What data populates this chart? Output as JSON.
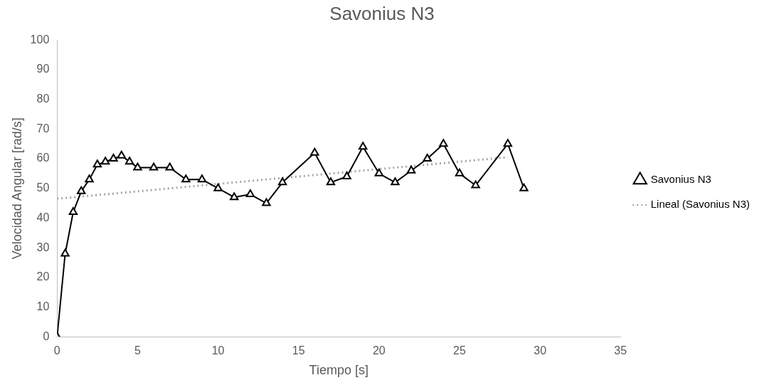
{
  "chart_data": {
    "type": "line",
    "title": "Savonius N3",
    "xlabel": "Tiempo [s]",
    "ylabel": "Velocidad Angular [rad/s]",
    "xlim": [
      0,
      35
    ],
    "xticks": [
      0,
      5,
      10,
      15,
      20,
      25,
      30,
      35
    ],
    "ylim": [
      0,
      100
    ],
    "yticks": [
      0,
      10,
      20,
      30,
      40,
      50,
      60,
      70,
      80,
      90,
      100
    ],
    "grid": false,
    "legend": "right",
    "series": [
      {
        "name": "Savonius N3",
        "color": "#000000",
        "marker": "triangle",
        "line_style": "solid",
        "x": [
          0,
          0.5,
          1,
          1.5,
          2,
          2.5,
          3,
          3.5,
          4,
          4.5,
          5,
          6,
          7,
          8,
          9,
          10,
          11,
          12,
          13,
          14,
          16,
          17,
          18,
          19,
          20,
          21,
          22,
          23,
          24,
          25,
          26,
          28,
          29
        ],
        "values": [
          0,
          28,
          42,
          49,
          53,
          58,
          59,
          60,
          61,
          59,
          57,
          57,
          57,
          53,
          53,
          50,
          47,
          48,
          45,
          52,
          62,
          52,
          54,
          64,
          55,
          52,
          56,
          60,
          65,
          55,
          51,
          65,
          50
        ]
      },
      {
        "name": "Lineal (Savonius N3)",
        "type": "line",
        "color": "#a6a6a6",
        "marker": "none",
        "line_style": "dotted",
        "x": [
          0,
          28
        ],
        "values": [
          46.5,
          60.5
        ]
      }
    ]
  }
}
